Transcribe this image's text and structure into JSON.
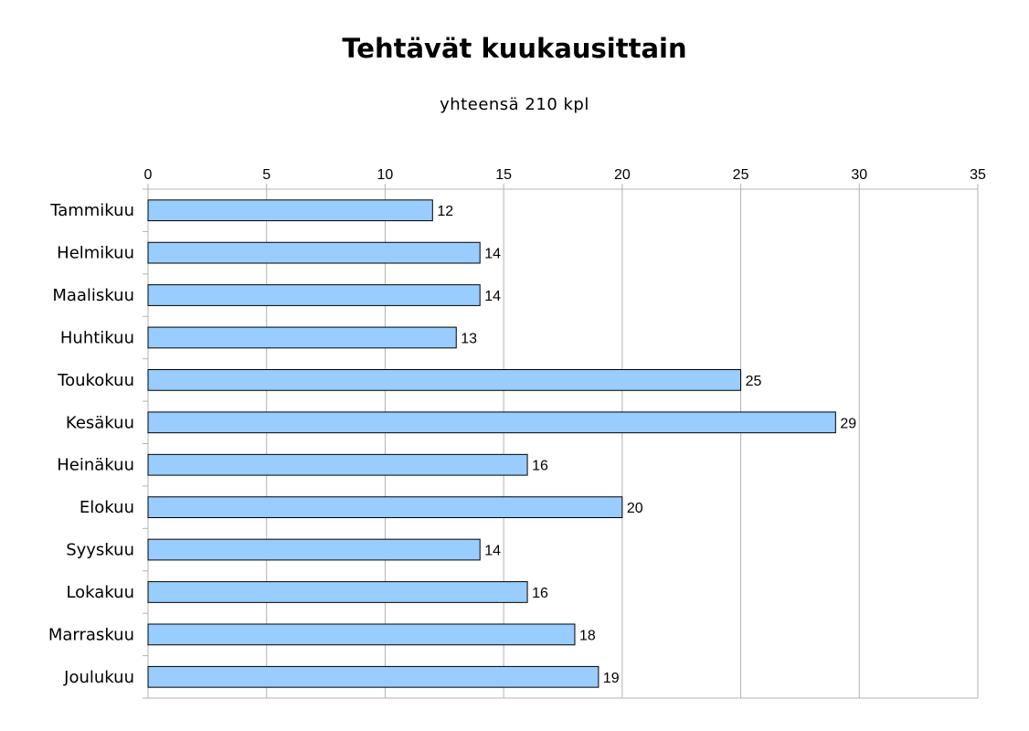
{
  "chart_data": {
    "type": "bar",
    "orientation": "horizontal",
    "title": "Tehtävät kuukausittain",
    "subtitle": "yhteensä 210 kpl",
    "categories": [
      "Tammikuu",
      "Helmikuu",
      "Maaliskuu",
      "Huhtikuu",
      "Toukokuu",
      "Kesäkuu",
      "Heinäkuu",
      "Elokuu",
      "Syyskuu",
      "Lokakuu",
      "Marraskuu",
      "Joulukuu"
    ],
    "values": [
      12,
      14,
      14,
      13,
      25,
      29,
      16,
      20,
      14,
      16,
      18,
      19
    ],
    "xlim": [
      0,
      35
    ],
    "xticks": [
      0,
      5,
      10,
      15,
      20,
      25,
      30,
      35
    ],
    "value_axis_position": "top",
    "grid": true,
    "data_labels": true,
    "legend": "none",
    "colors": {
      "bar_fill": "#99ccff",
      "bar_stroke": "#000000",
      "grid": "#b3b3b3",
      "axis": "#b3b3b3"
    }
  }
}
